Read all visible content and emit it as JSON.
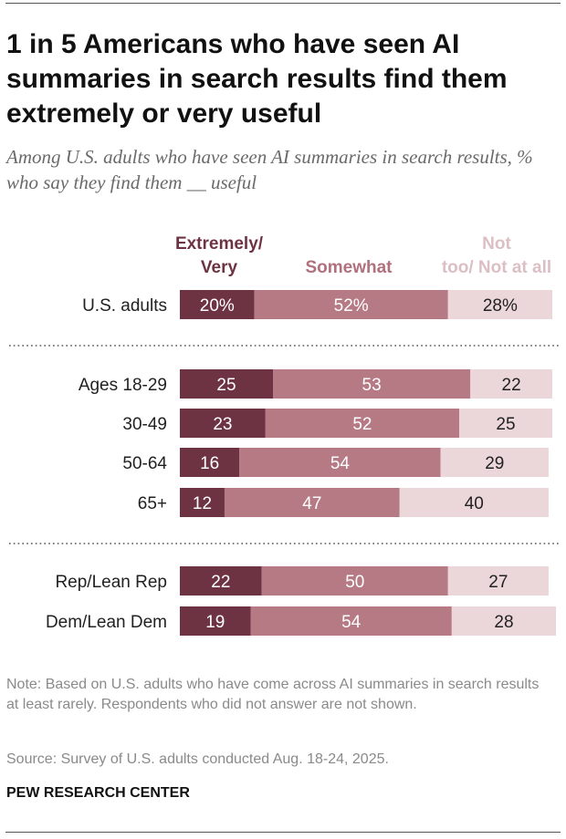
{
  "title": "1 in 5 Americans who have seen AI summaries in search results find them extremely or very useful",
  "subtitle": "Among U.S. adults who have seen AI summaries in search results, % who say they find them __ useful",
  "note": "Note: Based on U.S. adults who have come across AI summaries in search results at least rarely. Respondents who did not answer are not shown.",
  "source": "Source: Survey of U.S. adults conducted Aug. 18-24, 2025.",
  "brand": "PEW RESEARCH CENTER",
  "colors": {
    "extremely_very": "#6e3343",
    "somewhat": "#b67a84",
    "not_too": "#ebd6d9",
    "legend_somewhat": "#b0707c",
    "legend_not_too": "#dcbfc4"
  },
  "chart_data": {
    "type": "bar",
    "orientation": "horizontal",
    "stacked": true,
    "xlim": [
      0,
      100
    ],
    "legend_placement": "top",
    "series": [
      {
        "name": "Extremely/ Very",
        "color": "#6e3343"
      },
      {
        "name": "Somewhat",
        "color": "#b67a84"
      },
      {
        "name": "Not too/ Not at all",
        "color": "#ebd6d9"
      }
    ],
    "rows": [
      {
        "label": "U.S. adults",
        "values": [
          20,
          52,
          28
        ],
        "labels": [
          "20%",
          "52%",
          "28%"
        ]
      },
      {
        "label": "Ages 18-29",
        "values": [
          25,
          53,
          22
        ],
        "labels": [
          "25",
          "53",
          "22"
        ]
      },
      {
        "label": "30-49",
        "values": [
          23,
          52,
          25
        ],
        "labels": [
          "23",
          "52",
          "25"
        ]
      },
      {
        "label": "50-64",
        "values": [
          16,
          54,
          29
        ],
        "labels": [
          "16",
          "54",
          "29"
        ]
      },
      {
        "label": "65+",
        "values": [
          12,
          47,
          40
        ],
        "labels": [
          "12",
          "47",
          "40"
        ]
      },
      {
        "label": "Rep/Lean Rep",
        "values": [
          22,
          50,
          27
        ],
        "labels": [
          "22",
          "50",
          "27"
        ]
      },
      {
        "label": "Dem/Lean Dem",
        "values": [
          19,
          54,
          28
        ],
        "labels": [
          "19",
          "54",
          "28"
        ]
      }
    ],
    "group_separators_after_rows": [
      0,
      4
    ]
  }
}
